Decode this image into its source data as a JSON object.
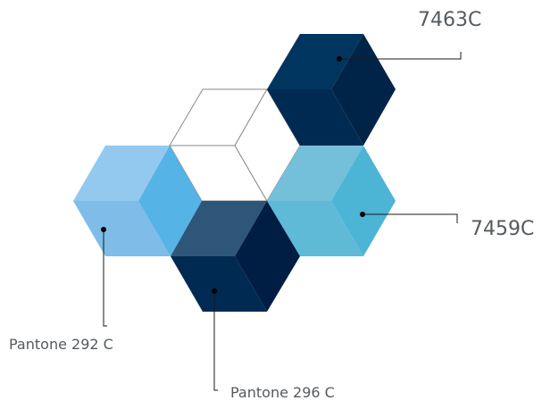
{
  "cubes": [
    {
      "id": "cube-7463c",
      "top_color": "#00355f",
      "left_color": "#002a52",
      "right_color": "#002448"
    },
    {
      "id": "cube-outline",
      "top_color": "#ffffff",
      "left_color": "#ffffff",
      "right_color": "#ffffff",
      "stroke": "#8a8a8a"
    },
    {
      "id": "cube-pantone-292",
      "top_color": "#93c9ee",
      "left_color": "#7fbce8",
      "right_color": "#55b3e5"
    },
    {
      "id": "cube-7459c",
      "top_color": "#74c0db",
      "left_color": "#5fbad8",
      "right_color": "#4cb4d4"
    },
    {
      "id": "cube-pantone-296",
      "top_color": "#2e5679",
      "left_color": "#002a52",
      "right_color": "#001d43"
    }
  ],
  "labels": {
    "c7463": "7463C",
    "c7459": "7459C",
    "p292": "Pantone 292 C",
    "p296": "Pantone 296 C"
  },
  "colors": {
    "leader_line": "#1a1a1a",
    "dot": "#000000",
    "label_text": "#555a5e"
  }
}
